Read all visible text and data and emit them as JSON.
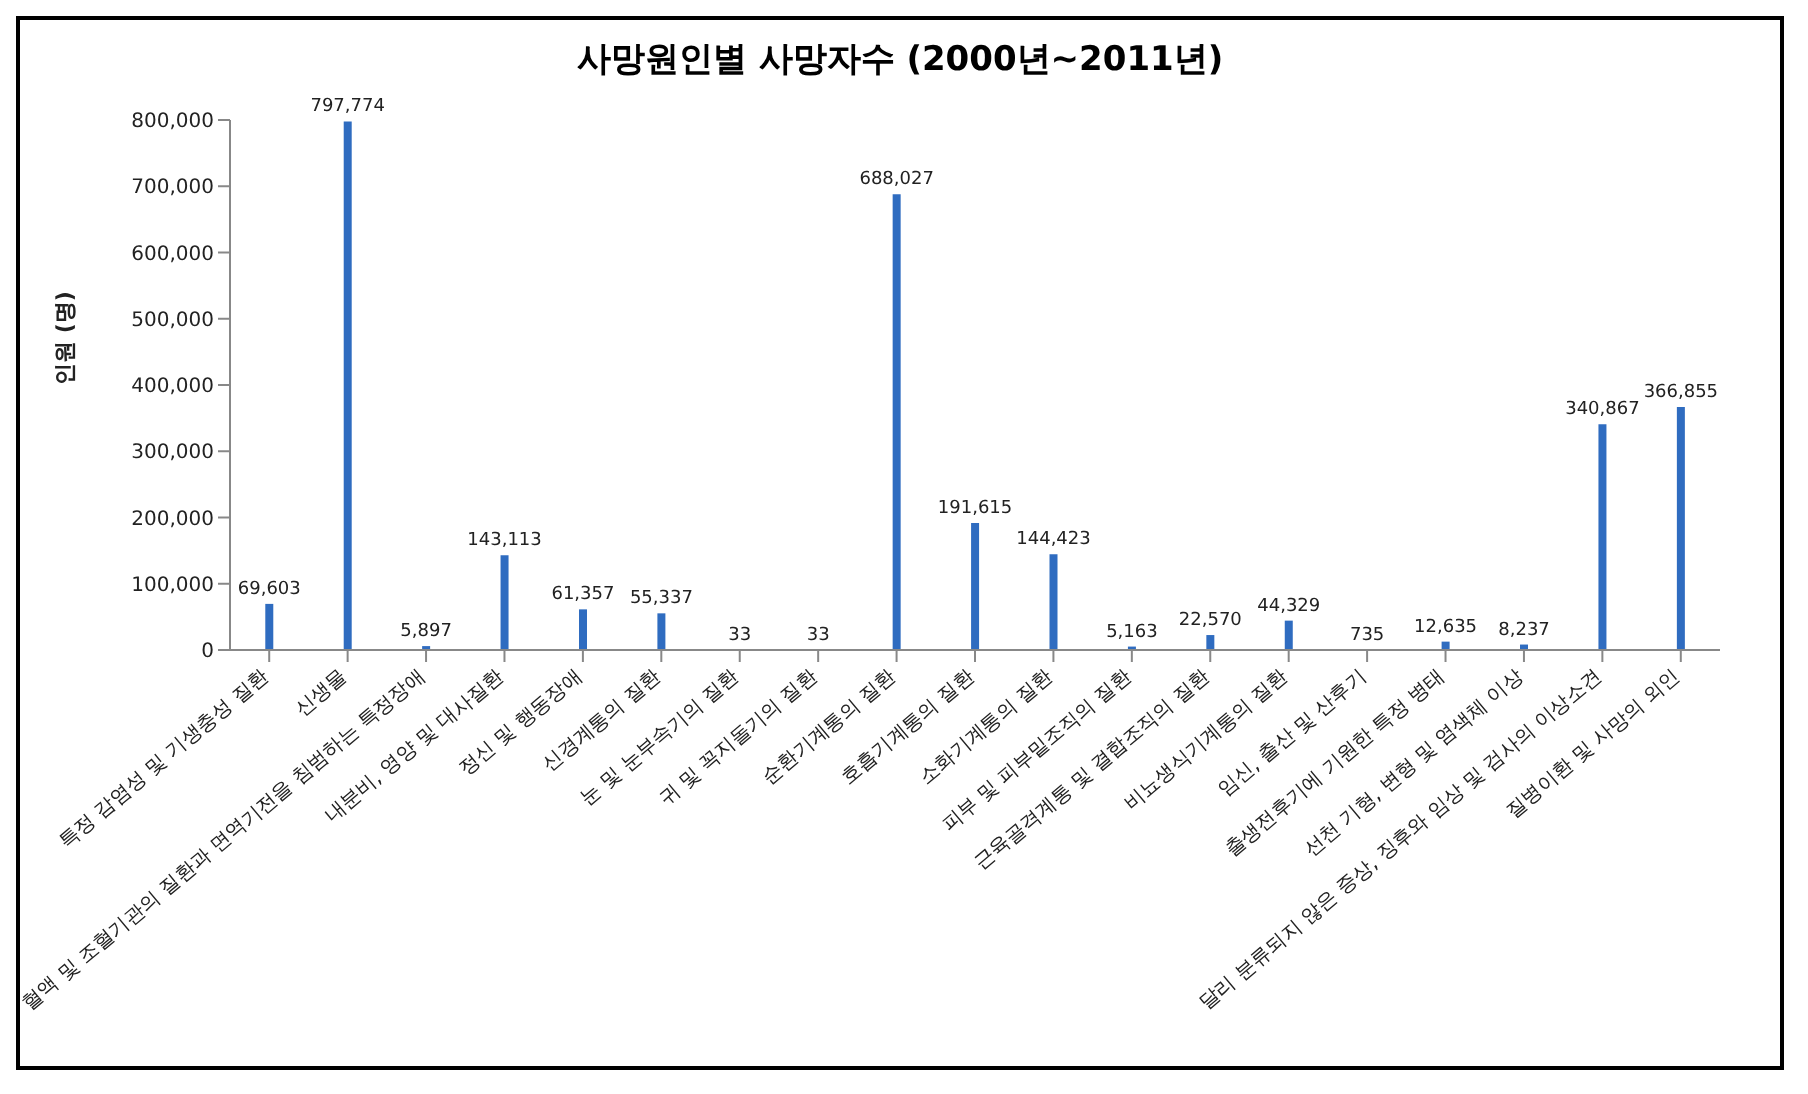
{
  "chart_data": {
    "type": "bar",
    "title": "사망원인별 사망자수 (2000년~2011년)",
    "ylabel": "인원 (명)",
    "categories": [
      "특정 감염성 및 기생충성 질환",
      "신생물",
      "혈액 및 조혈기관의 질환과 면역기전을 침범하는 특정장애",
      "내분비, 영양 및 대사질환",
      "정신 및 행동장애",
      "신경계통의 질환",
      "눈 및 눈부속기의 질환",
      "귀 및 꼭지돌기의 질환",
      "순환기계통의 질환",
      "호흡기계통의 질환",
      "소화기계통의 질환",
      "피부 및 피부밑조직의 질환",
      "근육골격계통 및 결합조직의 질환",
      "비뇨생식기계통의 질환",
      "임신, 출산 및 산후기",
      "출생전후기에 기원한 특정 병태",
      "선천 기형, 변형 및 염색체 이상",
      "달리 분류되지 않은 증상, 징후와 임상 및 검사의 이상소견",
      "질병이환 및 사망의 외인"
    ],
    "values": [
      69603,
      797774,
      5897,
      143113,
      61357,
      55337,
      33,
      33,
      688027,
      191615,
      144423,
      5163,
      22570,
      44329,
      735,
      12635,
      8237,
      340867,
      366855
    ],
    "color": "#2f6cc0",
    "ylim": [
      0,
      800000
    ],
    "yticks": [
      {
        "value": 0,
        "label": "0"
      },
      {
        "value": 100000,
        "label": "100,000"
      },
      {
        "value": 200000,
        "label": "200,000"
      },
      {
        "value": 300000,
        "label": "300,000"
      },
      {
        "value": 400000,
        "label": "400,000"
      },
      {
        "value": 500000,
        "label": "500,000"
      },
      {
        "value": 600000,
        "label": "600,000"
      },
      {
        "value": 700000,
        "label": "700,000"
      },
      {
        "value": 800000,
        "label": "800,000"
      }
    ],
    "value_labels": [
      "69,603",
      "797,774",
      "5,897",
      "143,113",
      "61,357",
      "55,337",
      "33",
      "33",
      "688,027",
      "191,615",
      "144,423",
      "5,163",
      "22,570",
      "44,329",
      "735",
      "12,635",
      "8,237",
      "340,867",
      "366,855"
    ],
    "grid": false,
    "legend": false
  }
}
